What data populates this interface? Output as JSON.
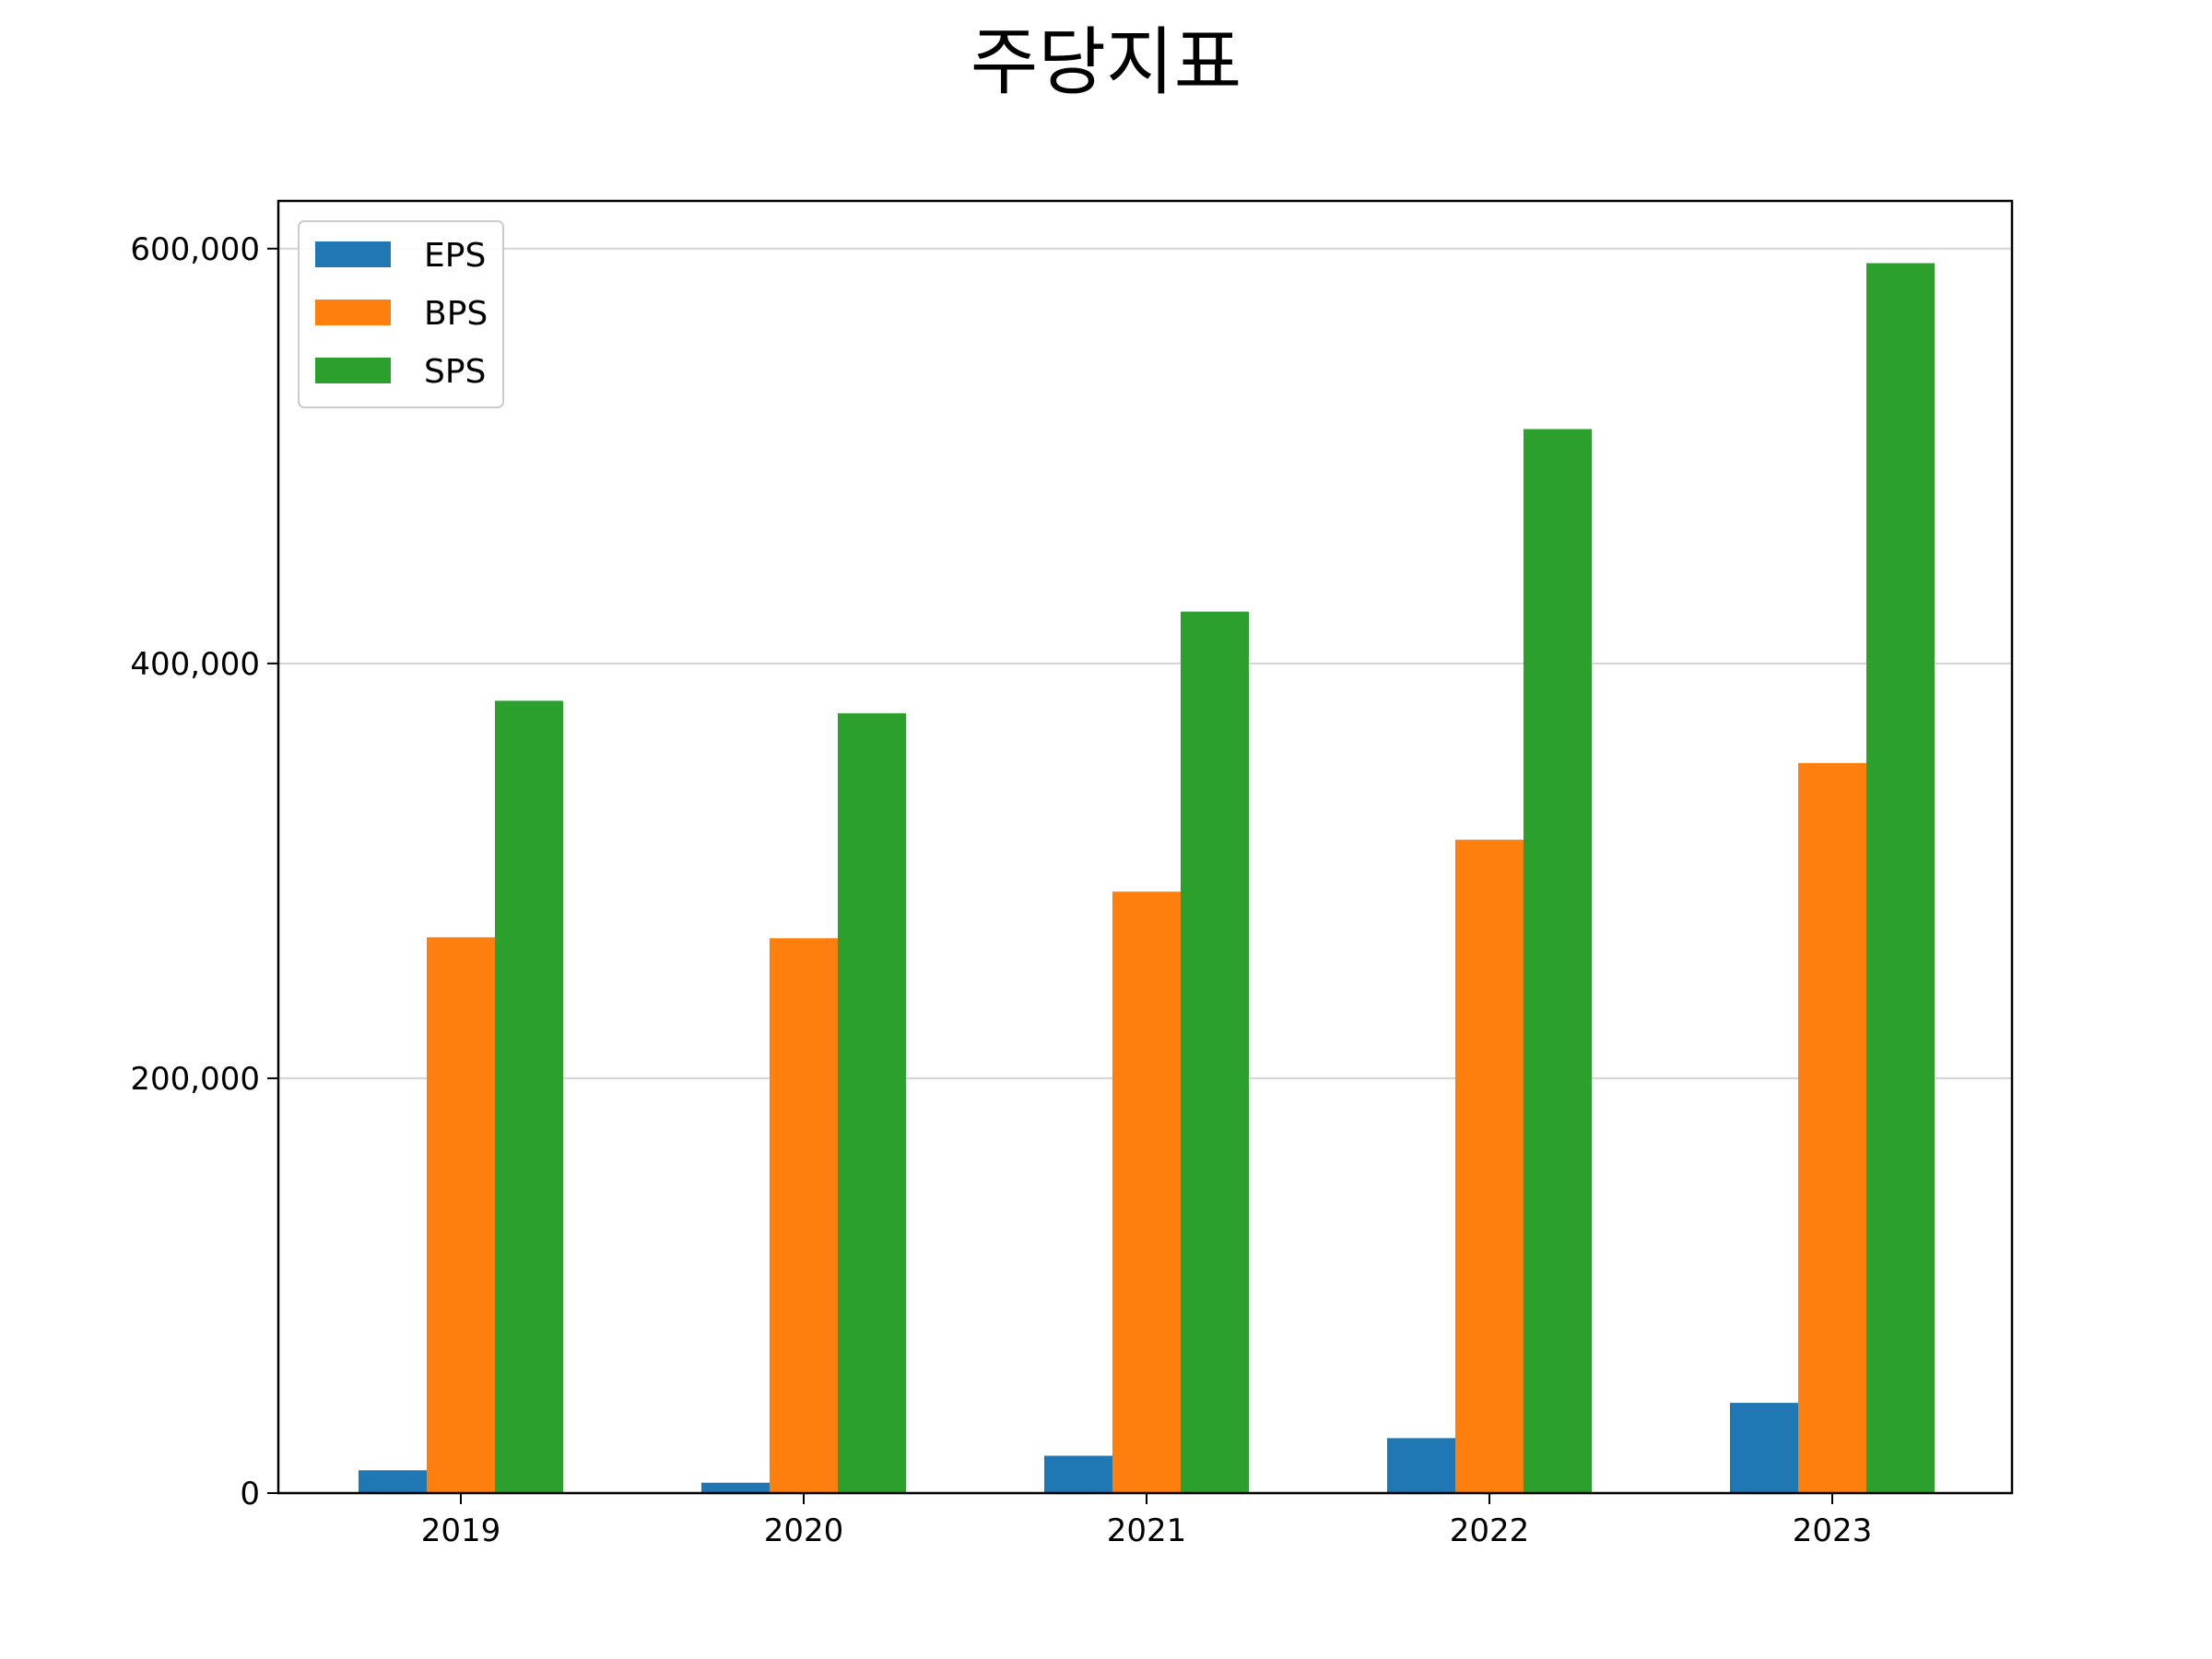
{
  "chart_data": {
    "type": "bar",
    "title": "주당지표",
    "xlabel": "",
    "ylabel": "",
    "categories": [
      "2019",
      "2020",
      "2021",
      "2022",
      "2023"
    ],
    "series": [
      {
        "name": "EPS",
        "color": "#1f77b4",
        "values": [
          11000,
          5000,
          18000,
          26500,
          43500
        ]
      },
      {
        "name": "BPS",
        "color": "#ff7f0e",
        "values": [
          268000,
          267500,
          290000,
          315000,
          352000
        ]
      },
      {
        "name": "SPS",
        "color": "#2ca02c",
        "values": [
          382000,
          376000,
          425000,
          513000,
          593000
        ]
      }
    ],
    "ylim": [
      0,
      600000
    ],
    "yticks": [
      0,
      200000,
      400000,
      600000
    ],
    "ytick_labels": [
      "0",
      "200,000",
      "400,000",
      "600,000"
    ],
    "grid": "y",
    "legend_position": "top-left"
  }
}
